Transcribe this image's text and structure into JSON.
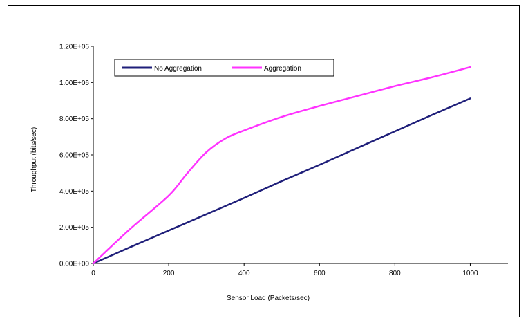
{
  "chart_data": {
    "type": "line",
    "title": "",
    "xlabel": "Sensor Load (Packets/sec)",
    "ylabel": "Throughput (bits/sec)",
    "xlim": [
      0,
      1100
    ],
    "ylim": [
      0,
      1200000
    ],
    "x_ticks": [
      0,
      200,
      400,
      600,
      800,
      1000
    ],
    "y_ticks": [
      0,
      200000,
      400000,
      600000,
      800000,
      1000000,
      1200000
    ],
    "y_tick_labels": [
      "0.00E+00",
      "2.00E+05",
      "4.00E+05",
      "6.00E+05",
      "8.00E+05",
      "1.00E+06",
      "1.20E+06"
    ],
    "grid": false,
    "legend_position": "top-left",
    "series": [
      {
        "name": "No Aggregation",
        "color": "#1f1f7a",
        "x": [
          0,
          100,
          200,
          300,
          400,
          500,
          600,
          700,
          800,
          900,
          1000
        ],
        "y": [
          0,
          92000,
          182000,
          272000,
          362000,
          455000,
          545000,
          638000,
          730000,
          822000,
          912000
        ]
      },
      {
        "name": "Aggregation",
        "color": "#ff33ff",
        "x": [
          0,
          100,
          200,
          250,
          300,
          350,
          400,
          500,
          600,
          700,
          800,
          900,
          1000
        ],
        "y": [
          0,
          195000,
          375000,
          500000,
          615000,
          690000,
          735000,
          810000,
          870000,
          925000,
          980000,
          1030000,
          1085000
        ]
      }
    ]
  }
}
